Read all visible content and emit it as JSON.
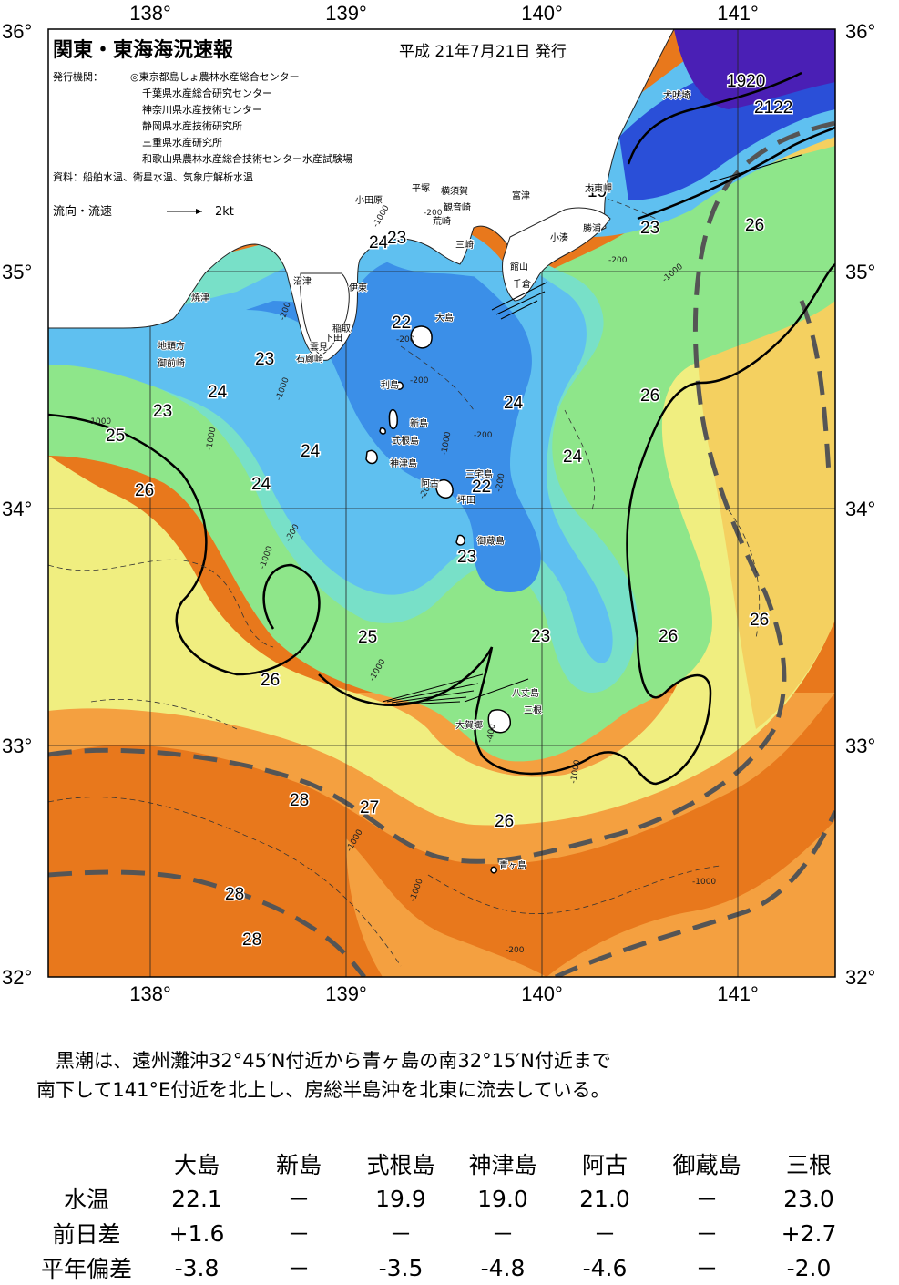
{
  "map": {
    "title": "関東・東海海況速報",
    "issued": "平成 21年7月21日 発行",
    "agencies_label": "発行機関：",
    "agencies": [
      "◎東京都島しょ農林水産総合センター",
      "千葉県水産総合研究センター",
      "神奈川県水産技術センター",
      "静岡県水産技術研究所",
      "三重県水産研究所",
      "和歌山県農林水産総合技術センター水産試験場"
    ],
    "sources": "資料：船舶水温、衛星水温、気象庁解析水温",
    "flow_legend_label": "流向・流速",
    "flow_legend_speed": "2kt",
    "lon_ticks": [
      "138°",
      "139°",
      "140°",
      "141°"
    ],
    "lat_ticks_left": [
      "36°",
      "35°",
      "34°",
      "33°",
      "32°"
    ],
    "lat_ticks_right": [
      "36°",
      "35°",
      "34°",
      "33°",
      "32°"
    ],
    "isotherm_labels": [
      "1920",
      "2122",
      "19",
      "23",
      "26",
      "24",
      "23",
      "22",
      "23",
      "24",
      "25",
      "23",
      "26",
      "24",
      "24",
      "24",
      "26",
      "22",
      "24",
      "23",
      "23",
      "25",
      "26",
      "26",
      "26",
      "28",
      "27",
      "26",
      "28",
      "28"
    ],
    "depth_labels": [
      "-1000",
      "-200",
      "-200",
      "-200",
      "-200",
      "-1000",
      "-1000",
      "-1000",
      "-200",
      "-1000",
      "-200",
      "-1000",
      "-200",
      "-400",
      "-1000",
      "-200",
      "-1000",
      "-1000",
      "-1000",
      "-200",
      "-1000",
      "-1000",
      "-200"
    ],
    "places": [
      "犬吠埼",
      "太東岬",
      "勝浦",
      "小湊",
      "富津",
      "平塚",
      "横須賀",
      "観音崎",
      "荒崎",
      "三崎",
      "小田原",
      "館山",
      "千倉",
      "沼津",
      "伊東",
      "焼津",
      "大島",
      "稲取",
      "下田",
      "雲見",
      "石廊崎",
      "地頭方",
      "御前崎",
      "利島",
      "新島",
      "式根島",
      "神津島",
      "三宅島",
      "阿古",
      "坪田",
      "御蔵島",
      "八丈島",
      "三根",
      "大賀郷",
      "青ヶ島"
    ],
    "colors": {
      "land": "#ffffff",
      "t19": "#4a1fb5",
      "t20": "#2a4fd8",
      "t22": "#3b8fe8",
      "t23": "#5fc0f0",
      "t24": "#78e0c8",
      "t25": "#8ee68a",
      "t26": "#f0ee80",
      "t26b": "#f4d060",
      "t27": "#f4a040",
      "t28": "#e8781c",
      "kuroshio": "#555555"
    }
  },
  "summary": {
    "line1": "　黒潮は、遠州灘沖32°45′N付近から青ヶ島の南32°15′N付近まで",
    "line2": "南下して141°E付近を北上し、房総半島沖を北東に流去している。"
  },
  "table": {
    "columns": [
      "大島",
      "新島",
      "式根島",
      "神津島",
      "阿古",
      "御蔵島",
      "三根"
    ],
    "rows": [
      {
        "label": "水温",
        "values": [
          "22.1",
          "－",
          "19.9",
          "19.0",
          "21.0",
          "－",
          "23.0"
        ]
      },
      {
        "label": "前日差",
        "values": [
          "+1.6",
          "－",
          "－",
          "－",
          "－",
          "－",
          "+2.7"
        ]
      },
      {
        "label": "平年偏差",
        "values": [
          "-3.8",
          "－",
          "-3.5",
          "-4.8",
          "-4.6",
          "－",
          "-2.0"
        ]
      }
    ]
  }
}
